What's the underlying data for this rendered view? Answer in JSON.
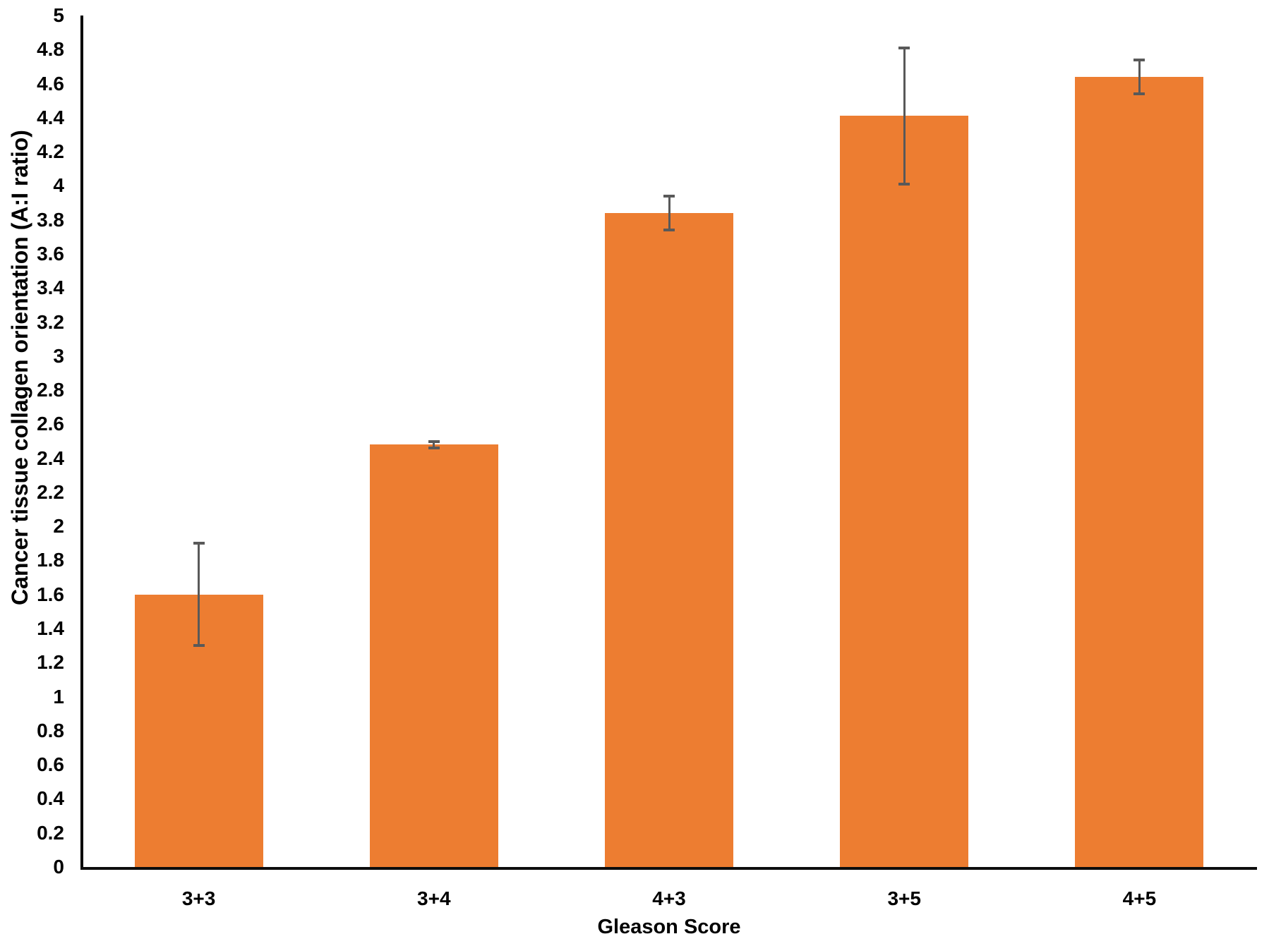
{
  "chart_data": {
    "type": "bar",
    "title": "",
    "xlabel": "Gleason Score",
    "ylabel": "Cancer tissue collagen orientation (A:I ratio)",
    "categories": [
      "3+3",
      "3+4",
      "4+3",
      "3+5",
      "4+5"
    ],
    "series": [
      {
        "name": "Cancer tissue collagen orientation (A:I ratio)",
        "values": [
          1.6,
          2.48,
          3.84,
          4.41,
          4.64
        ],
        "error_plus": [
          0.3,
          0.02,
          0.1,
          0.4,
          0.1
        ],
        "error_minus": [
          0.3,
          0.02,
          0.1,
          0.4,
          0.1
        ]
      }
    ],
    "ylim": [
      0,
      5
    ],
    "ytick_step": 0.2,
    "ytick_labels": [
      "0",
      "0.2",
      "0.4",
      "0.6",
      "0.8",
      "1",
      "1.2",
      "1.4",
      "1.6",
      "1.8",
      "2",
      "2.2",
      "2.4",
      "2.6",
      "2.8",
      "3",
      "3.2",
      "3.4",
      "3.6",
      "3.8",
      "4",
      "4.2",
      "4.4",
      "4.6",
      "4.8",
      "5"
    ],
    "grid": false,
    "legend_position": "none",
    "colors": {
      "bar": "#ED7D31",
      "error_bar": "#595959",
      "axis": "#000000",
      "text": "#000000",
      "background": "#FFFFFF"
    }
  }
}
